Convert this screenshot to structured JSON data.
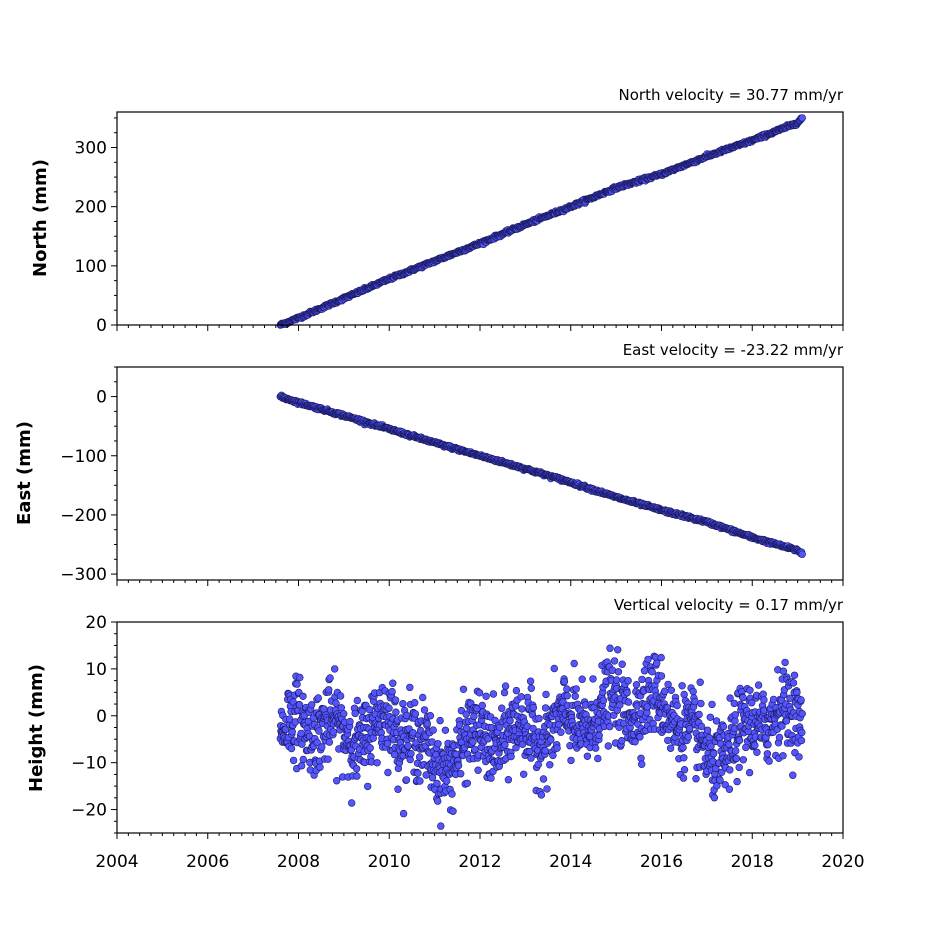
{
  "chart_data": [
    {
      "type": "scatter",
      "title": "North velocity = 30.77 mm/yr",
      "ylabel": "North (mm)",
      "xlim": [
        2004,
        2020
      ],
      "ylim": [
        0,
        360
      ],
      "yticks": [
        0,
        100,
        200,
        300
      ],
      "xtick_labels_visible": false,
      "velocity": 30.77,
      "point_color": "#5555ff",
      "edge_color": "#1a1a60",
      "series": [
        {
          "x": [
            2007.6,
            2008,
            2009,
            2010,
            2011,
            2012,
            2013,
            2014,
            2015,
            2016,
            2017,
            2018,
            2019,
            2019.1
          ],
          "y": [
            0,
            12,
            45,
            78,
            108,
            138,
            170,
            200,
            232,
            255,
            285,
            312,
            342,
            350
          ]
        }
      ]
    },
    {
      "type": "scatter",
      "title": "East velocity = -23.22 mm/yr",
      "ylabel": "East (mm)",
      "xlim": [
        2004,
        2020
      ],
      "ylim": [
        -310,
        50
      ],
      "yticks": [
        0,
        -100,
        -200,
        -300
      ],
      "ytick_labels": [
        "0",
        "−100",
        "−200",
        "−300"
      ],
      "xtick_labels_visible": false,
      "velocity": -23.22,
      "point_color": "#5555ff",
      "edge_color": "#1a1a60",
      "series": [
        {
          "x": [
            2007.6,
            2008,
            2009,
            2010,
            2011,
            2012,
            2013,
            2014,
            2015,
            2016,
            2017,
            2018,
            2019,
            2019.1
          ],
          "y": [
            0,
            -10,
            -32,
            -55,
            -78,
            -100,
            -122,
            -145,
            -170,
            -192,
            -212,
            -238,
            -260,
            -265
          ]
        }
      ]
    },
    {
      "type": "scatter",
      "title": "Vertical velocity = 0.17 mm/yr",
      "ylabel": "Height (mm)",
      "xlim": [
        2004,
        2020
      ],
      "ylim": [
        -25,
        20
      ],
      "yticks": [
        20,
        10,
        0,
        -10,
        -20
      ],
      "ytick_labels": [
        "20",
        "10",
        "0",
        "−10",
        "−20"
      ],
      "xticks": [
        2004,
        2006,
        2008,
        2010,
        2012,
        2014,
        2016,
        2018,
        2020
      ],
      "xtick_labels": [
        "2004",
        "2006",
        "2008",
        "2010",
        "2012",
        "2014",
        "2016",
        "2018",
        "2020"
      ],
      "velocity": 0.17,
      "point_color": "#5555ff",
      "edge_color": "#1a1a60",
      "series": [
        {
          "x": [
            2007.6,
            2008,
            2008.5,
            2009,
            2009.5,
            2010,
            2010.5,
            2011,
            2011.5,
            2012,
            2012.5,
            2013,
            2013.5,
            2014,
            2014.5,
            2015,
            2015.5,
            2016,
            2016.5,
            2017,
            2017.5,
            2018,
            2018.5,
            2019,
            2019.1
          ],
          "y": [
            -4,
            -2,
            -1,
            -5,
            -3,
            -2,
            -3,
            -12,
            -7,
            -5,
            -4,
            -4,
            -3,
            -2,
            0,
            2,
            3,
            2,
            -1,
            -10,
            -6,
            -3,
            2,
            -2,
            -5
          ]
        }
      ]
    }
  ]
}
